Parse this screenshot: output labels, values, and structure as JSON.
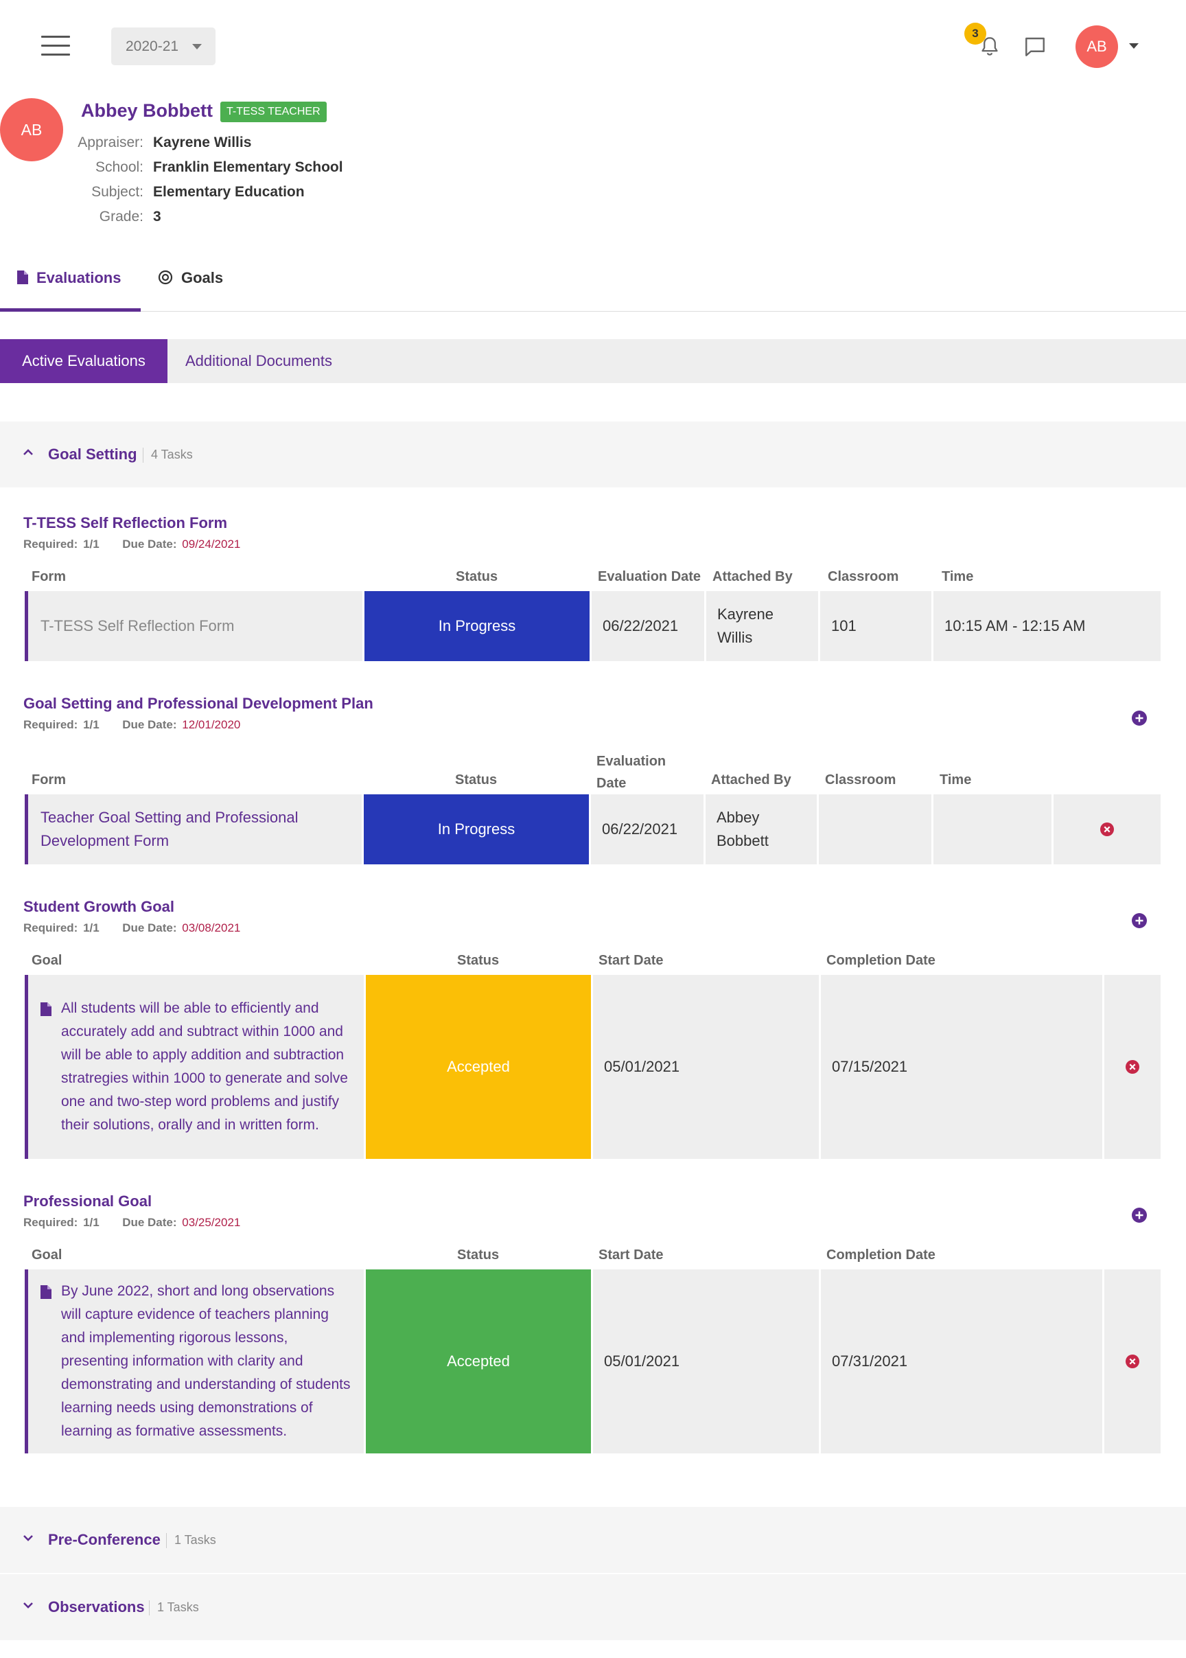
{
  "topbar": {
    "year": "2020-21",
    "notification_count": "3",
    "user_initials": "AB"
  },
  "profile": {
    "initials": "AB",
    "name": "Abbey Bobbett",
    "role_badge": "T-TESS TEACHER",
    "fields": [
      {
        "label": "Appraiser:",
        "value": "Kayrene Willis"
      },
      {
        "label": "School:",
        "value": "Franklin Elementary School"
      },
      {
        "label": "Subject:",
        "value": "Elementary Education"
      },
      {
        "label": "Grade:",
        "value": "3"
      }
    ]
  },
  "main_tabs": [
    {
      "label": "Evaluations",
      "icon": "document-icon",
      "active": true
    },
    {
      "label": "Goals",
      "icon": "target-icon",
      "active": false
    }
  ],
  "sub_tabs": [
    {
      "label": "Active Evaluations",
      "active": true
    },
    {
      "label": "Additional Documents",
      "active": false
    }
  ],
  "colors": {
    "brand_purple": "#5e2d91",
    "in_progress": "#2638b7",
    "accepted_yellow": "#fbbf06",
    "accepted_green": "#4caf50",
    "due_red": "#b0204a",
    "delete_red": "#c62848"
  },
  "sections": [
    {
      "title": "Goal Setting",
      "count": "4 Tasks",
      "expanded": true,
      "tasks": [
        {
          "title": "T-TESS Self Reflection Form",
          "required_label": "Required:",
          "required": "1/1",
          "due_label": "Due Date:",
          "due": "09/24/2021",
          "columns": [
            "Form",
            "Status",
            "Evaluation Date",
            "Attached By",
            "Classroom",
            "Time"
          ],
          "row": {
            "form": "T-TESS Self Reflection Form",
            "status": "In Progress",
            "date": "06/22/2021",
            "attached_by": "Kayrene Willis",
            "classroom": "101",
            "time": "10:15 AM - 12:15 AM"
          }
        },
        {
          "title": "Goal Setting and Professional Development Plan",
          "required_label": "Required:",
          "required": "1/1",
          "due_label": "Due Date:",
          "due": "12/01/2020",
          "columns": [
            "Form",
            "Status",
            "Evaluation Date",
            "Attached By",
            "Classroom",
            "Time"
          ],
          "row": {
            "form": "Teacher Goal Setting and Professional Development Form",
            "status": "In Progress",
            "date": "06/22/2021",
            "attached_by": "Abbey Bobbett",
            "classroom": "",
            "time": ""
          }
        },
        {
          "title": "Student Growth Goal",
          "required_label": "Required:",
          "required": "1/1",
          "due_label": "Due Date:",
          "due": "03/08/2021",
          "columns": [
            "Goal",
            "Status",
            "Start Date",
            "Completion Date"
          ],
          "row": {
            "goal": "All students will be able to efficiently and accurately add and subtract within 1000 and will be able to apply addition and subtraction stratregies within 1000 to generate and solve one and two-step word problems and justify their solutions, orally and in written form.",
            "status": "Accepted",
            "start": "05/01/2021",
            "completion": "07/15/2021"
          }
        },
        {
          "title": "Professional Goal",
          "required_label": "Required:",
          "required": "1/1",
          "due_label": "Due Date:",
          "due": "03/25/2021",
          "columns": [
            "Goal",
            "Status",
            "Start Date",
            "Completion Date"
          ],
          "row": {
            "goal": "By June 2022, short and long observations will capture evidence of teachers planning and implementing rigorous lessons, presenting information with clarity and demonstrating and understanding of students learning needs using demonstrations of learning as formative assessments.",
            "status": "Accepted",
            "start": "05/01/2021",
            "completion": "07/31/2021"
          }
        }
      ]
    },
    {
      "title": "Pre-Conference",
      "count": "1 Tasks",
      "expanded": false
    },
    {
      "title": "Observations",
      "count": "1 Tasks",
      "expanded": false
    }
  ]
}
